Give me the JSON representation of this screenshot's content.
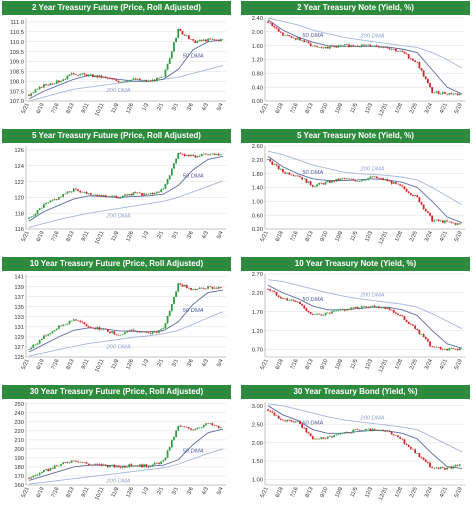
{
  "x_labels": {
    "futures": [
      "5/21",
      "6/19",
      "7/16",
      "8/13",
      "9/11",
      "10/11",
      "11/8",
      "12/6",
      "1/3",
      "2/1",
      "3/1",
      "3/6",
      "4/3",
      "5/4"
    ],
    "notes": [
      "5/21",
      "6/18",
      "7/16",
      "8/13",
      "9/10",
      "10/8",
      "11/5",
      "12/3",
      "12/31",
      "1/28",
      "2/25",
      "3/24",
      "4/21",
      "5/19"
    ]
  },
  "chart_data": [
    {
      "type": "line",
      "title": "2 Year Treasury Future (Price, Roll Adjusted)",
      "y_ticks": [
        "107.0",
        "107.5",
        "108.0",
        "108.5",
        "109.0",
        "109.5",
        "110.0",
        "110.5",
        "111.0"
      ],
      "ylim": [
        107.0,
        111.2
      ],
      "annotations": [
        "50 DMA",
        "200 DMA"
      ],
      "x": [
        0,
        1,
        2,
        3,
        4,
        5,
        6,
        7,
        8,
        9,
        10,
        11,
        12,
        13
      ],
      "series": [
        {
          "role": "price",
          "values": [
            107.3,
            107.8,
            108.0,
            108.4,
            108.3,
            108.2,
            108.0,
            108.1,
            108.0,
            108.2,
            110.6,
            110.0,
            110.1,
            110.1
          ]
        },
        {
          "role": "50dma",
          "values": [
            107.1,
            107.5,
            107.8,
            108.1,
            108.3,
            108.2,
            108.1,
            108.0,
            108.0,
            108.1,
            108.6,
            109.6,
            110.0,
            110.1
          ]
        },
        {
          "role": "200dma",
          "values": [
            107.0,
            107.2,
            107.4,
            107.6,
            107.7,
            107.8,
            107.9,
            108.0,
            108.0,
            108.1,
            108.2,
            108.4,
            108.6,
            108.8
          ]
        }
      ]
    },
    {
      "type": "line",
      "title": "2 Year Treasury Note (Yield, %)",
      "y_ticks": [
        "0.00",
        "0.40",
        "0.80",
        "1.20",
        "1.60",
        "2.00",
        "2.40"
      ],
      "ylim": [
        0.0,
        2.4
      ],
      "annotations": [
        "50 DMA",
        "200 DMA"
      ],
      "x": [
        0,
        1,
        2,
        3,
        4,
        5,
        6,
        7,
        8,
        9,
        10,
        11,
        12,
        13
      ],
      "series": [
        {
          "role": "price",
          "values": [
            2.3,
            1.9,
            1.8,
            1.6,
            1.55,
            1.6,
            1.6,
            1.6,
            1.55,
            1.4,
            1.1,
            0.25,
            0.22,
            0.18
          ]
        },
        {
          "role": "50dma",
          "values": [
            2.35,
            2.05,
            1.85,
            1.7,
            1.6,
            1.58,
            1.58,
            1.58,
            1.56,
            1.5,
            1.4,
            0.9,
            0.4,
            0.2
          ]
        },
        {
          "role": "200dma",
          "values": [
            2.4,
            2.3,
            2.2,
            2.05,
            1.95,
            1.85,
            1.78,
            1.72,
            1.66,
            1.6,
            1.55,
            1.4,
            1.2,
            0.95
          ]
        }
      ]
    },
    {
      "type": "line",
      "title": "5 Year Treasury Future (Price, Roll Adjusted)",
      "y_ticks": [
        "116",
        "118",
        "120",
        "122",
        "124",
        "126"
      ],
      "ylim": [
        116,
        126.5
      ],
      "annotations": [
        "50 DMA",
        "200 DMA"
      ],
      "x": [
        0,
        1,
        2,
        3,
        4,
        5,
        6,
        7,
        8,
        9,
        10,
        11,
        12,
        13
      ],
      "series": [
        {
          "role": "price",
          "values": [
            117.3,
            119.0,
            120.0,
            121.0,
            120.5,
            120.2,
            120.0,
            120.5,
            120.3,
            121.0,
            125.5,
            125.2,
            125.4,
            125.3
          ]
        },
        {
          "role": "50dma",
          "values": [
            117.0,
            118.2,
            119.0,
            119.8,
            120.2,
            120.1,
            120.0,
            120.1,
            120.2,
            120.4,
            121.5,
            123.5,
            124.8,
            125.2
          ]
        },
        {
          "role": "200dma",
          "values": [
            116.2,
            116.7,
            117.2,
            117.6,
            118.0,
            118.3,
            118.6,
            118.9,
            119.2,
            119.5,
            120.0,
            120.7,
            121.4,
            122.1
          ]
        }
      ]
    },
    {
      "type": "line",
      "title": "5 Year Treasury Note (Yield, %)",
      "y_ticks": [
        "0.20",
        "0.60",
        "1.00",
        "1.40",
        "1.80",
        "2.20",
        "2.60"
      ],
      "ylim": [
        0.2,
        2.6
      ],
      "annotations": [
        "50 DMA",
        "200 DMA"
      ],
      "x": [
        0,
        1,
        2,
        3,
        4,
        5,
        6,
        7,
        8,
        9,
        10,
        11,
        12,
        13
      ],
      "series": [
        {
          "role": "price",
          "values": [
            2.2,
            1.85,
            1.75,
            1.45,
            1.55,
            1.65,
            1.6,
            1.7,
            1.6,
            1.4,
            1.1,
            0.45,
            0.4,
            0.32
          ]
        },
        {
          "role": "50dma",
          "values": [
            2.3,
            2.0,
            1.8,
            1.65,
            1.6,
            1.6,
            1.62,
            1.65,
            1.62,
            1.55,
            1.4,
            1.0,
            0.55,
            0.38
          ]
        },
        {
          "role": "200dma",
          "values": [
            2.45,
            2.35,
            2.2,
            2.05,
            1.95,
            1.85,
            1.8,
            1.78,
            1.75,
            1.7,
            1.62,
            1.4,
            1.15,
            0.9
          ]
        }
      ]
    },
    {
      "type": "line",
      "title": "10 Year Treasury Future (Price, Roll Adjusted)",
      "y_ticks": [
        "125",
        "127",
        "129",
        "131",
        "133",
        "135",
        "137",
        "139",
        "141"
      ],
      "ylim": [
        125,
        141.5
      ],
      "annotations": [
        "50 DMA",
        "200 DMA"
      ],
      "x": [
        0,
        1,
        2,
        3,
        4,
        5,
        6,
        7,
        8,
        9,
        10,
        11,
        12,
        13
      ],
      "series": [
        {
          "role": "price",
          "values": [
            126.5,
            129.0,
            131.0,
            132.5,
            131.0,
            130.5,
            129.5,
            130.5,
            129.5,
            130.5,
            139.5,
            138.5,
            138.8,
            138.6
          ]
        },
        {
          "role": "50dma",
          "values": [
            126.0,
            127.5,
            129.0,
            130.3,
            130.8,
            130.6,
            130.2,
            130.1,
            130.0,
            130.2,
            132.0,
            135.5,
            137.8,
            138.3
          ]
        },
        {
          "role": "200dma",
          "values": [
            125.2,
            125.8,
            126.5,
            127.1,
            127.7,
            128.1,
            128.5,
            128.9,
            129.2,
            129.6,
            130.3,
            131.5,
            132.8,
            134.0
          ]
        }
      ]
    },
    {
      "type": "line",
      "title": "10 Year Treasury Note (Yield, %)",
      "y_ticks": [
        "0.70",
        "1.20",
        "1.70",
        "2.20",
        "2.70"
      ],
      "ylim": [
        0.5,
        2.7
      ],
      "annotations": [
        "50 DMA",
        "200 DMA"
      ],
      "x": [
        0,
        1,
        2,
        3,
        4,
        5,
        6,
        7,
        8,
        9,
        10,
        11,
        12,
        13
      ],
      "series": [
        {
          "role": "price",
          "values": [
            2.3,
            2.05,
            1.95,
            1.6,
            1.65,
            1.75,
            1.8,
            1.85,
            1.8,
            1.55,
            1.2,
            0.75,
            0.7,
            0.72
          ]
        },
        {
          "role": "50dma",
          "values": [
            2.4,
            2.2,
            2.05,
            1.85,
            1.75,
            1.75,
            1.78,
            1.82,
            1.82,
            1.75,
            1.6,
            1.2,
            0.85,
            0.73
          ]
        },
        {
          "role": "200dma",
          "values": [
            2.55,
            2.5,
            2.4,
            2.3,
            2.2,
            2.12,
            2.05,
            2.0,
            1.95,
            1.9,
            1.82,
            1.65,
            1.45,
            1.25
          ]
        }
      ]
    },
    {
      "type": "line",
      "title": "30 Year Treasury Future (Price, Roll Adjusted)",
      "y_ticks": [
        "160",
        "170",
        "180",
        "190",
        "200",
        "210",
        "220",
        "230",
        "240",
        "250"
      ],
      "ylim": [
        160,
        252
      ],
      "annotations": [
        "50 DMA",
        "200 DMA"
      ],
      "x": [
        0,
        1,
        2,
        3,
        4,
        5,
        6,
        7,
        8,
        9,
        10,
        11,
        12,
        13
      ],
      "series": [
        {
          "role": "price",
          "values": [
            168,
            175,
            182,
            188,
            183,
            182,
            180,
            182,
            181,
            186,
            225,
            222,
            228,
            222
          ]
        },
        {
          "role": "50dma",
          "values": [
            165,
            170,
            175,
            180,
            182,
            182,
            181,
            181,
            181,
            182,
            188,
            205,
            218,
            222
          ]
        },
        {
          "role": "200dma",
          "values": [
            161,
            163,
            165,
            167,
            169,
            171,
            173,
            175,
            177,
            179,
            183,
            189,
            195,
            200
          ]
        }
      ]
    },
    {
      "type": "line",
      "title": "30 Year Treasury Bond (Yield, %)",
      "y_ticks": [
        "1.00",
        "1.50",
        "2.00",
        "2.50",
        "3.00"
      ],
      "ylim": [
        0.85,
        3.1
      ],
      "annotations": [
        "50 DMA",
        "200 DMA"
      ],
      "x": [
        0,
        1,
        2,
        3,
        4,
        5,
        6,
        7,
        8,
        9,
        10,
        11,
        12,
        13
      ],
      "series": [
        {
          "role": "price",
          "values": [
            2.9,
            2.6,
            2.55,
            2.1,
            2.15,
            2.25,
            2.35,
            2.35,
            2.3,
            2.05,
            1.7,
            1.3,
            1.3,
            1.4
          ]
        },
        {
          "role": "50dma",
          "values": [
            3.0,
            2.75,
            2.6,
            2.35,
            2.25,
            2.25,
            2.3,
            2.33,
            2.32,
            2.25,
            2.1,
            1.7,
            1.35,
            1.3
          ]
        },
        {
          "role": "200dma",
          "values": [
            3.05,
            3.0,
            2.9,
            2.8,
            2.7,
            2.62,
            2.57,
            2.52,
            2.47,
            2.42,
            2.35,
            2.15,
            1.95,
            1.75
          ]
        }
      ]
    }
  ],
  "colors": {
    "header_bg": "#2e8b3e",
    "candle_up": "#2e9e3e",
    "candle_down": "#d4242a",
    "dma50": "#5a6ca8",
    "dma200": "#a3b6dc",
    "grid": "#dddddd",
    "axis_text": "#333333",
    "annotation_text": "#4b5d9c"
  }
}
